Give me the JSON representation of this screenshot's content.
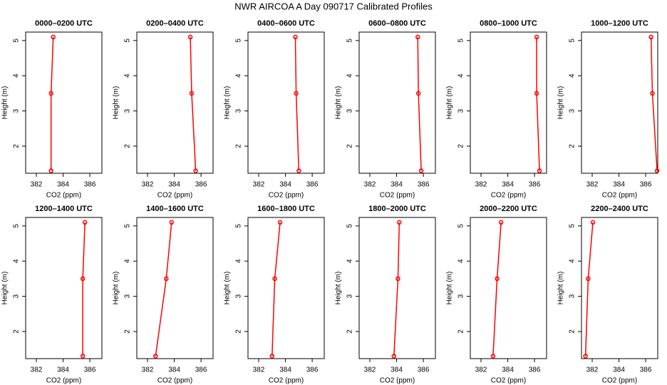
{
  "title": "NWR AIRCOA A  Day 090717  Calibrated Profiles",
  "chart_data": [
    {
      "type": "line",
      "title": "0000–0200 UTC",
      "x_label": "CO2 (ppm)",
      "y_label": "Height (m)",
      "x": [
        383.1,
        383.1,
        383.26
      ],
      "values": [
        1.3,
        3.5,
        5.1
      ],
      "color": "#ff0000",
      "xlim": [
        381.2,
        386.9
      ],
      "ylim": [
        1.23,
        5.24
      ],
      "xticks": [
        382,
        384,
        386
      ],
      "yticks": [
        2,
        3,
        4,
        5
      ]
    },
    {
      "type": "line",
      "title": "0200–0400 UTC",
      "x_label": "CO2 (ppm)",
      "y_label": "Height (m)",
      "x": [
        385.6,
        385.3,
        385.2
      ],
      "values": [
        1.3,
        3.5,
        5.1
      ],
      "color": "#ff0000",
      "xlim": [
        381.2,
        386.9
      ],
      "ylim": [
        1.23,
        5.24
      ],
      "xticks": [
        382,
        384,
        386
      ],
      "yticks": [
        2,
        3,
        4,
        5
      ]
    },
    {
      "type": "line",
      "title": "0400–0600 UTC",
      "x_label": "CO2 (ppm)",
      "y_label": "Height (m)",
      "x": [
        385.0,
        384.8,
        384.74
      ],
      "values": [
        1.3,
        3.5,
        5.1
      ],
      "color": "#ff0000",
      "xlim": [
        381.2,
        386.9
      ],
      "ylim": [
        1.23,
        5.24
      ],
      "xticks": [
        382,
        384,
        386
      ],
      "yticks": [
        2,
        3,
        4,
        5
      ]
    },
    {
      "type": "line",
      "title": "0600–0800 UTC",
      "x_label": "CO2 (ppm)",
      "y_label": "Height (m)",
      "x": [
        385.84,
        385.63,
        385.58
      ],
      "values": [
        1.3,
        3.5,
        5.1
      ],
      "color": "#ff0000",
      "xlim": [
        381.2,
        386.9
      ],
      "ylim": [
        1.23,
        5.24
      ],
      "xticks": [
        382,
        384,
        386
      ],
      "yticks": [
        2,
        3,
        4,
        5
      ]
    },
    {
      "type": "line",
      "title": "0800–1000 UTC",
      "x_label": "CO2 (ppm)",
      "y_label": "Height (m)",
      "x": [
        386.37,
        386.16,
        386.16
      ],
      "values": [
        1.3,
        3.5,
        5.1
      ],
      "color": "#ff0000",
      "xlim": [
        381.2,
        386.9
      ],
      "ylim": [
        1.23,
        5.24
      ],
      "xticks": [
        382,
        384,
        386
      ],
      "yticks": [
        2,
        3,
        4,
        5
      ]
    },
    {
      "type": "line",
      "title": "1000–1200 UTC",
      "x_label": "CO2 (ppm)",
      "y_label": "Height (m)",
      "x": [
        386.85,
        386.5,
        386.4
      ],
      "values": [
        1.3,
        3.5,
        5.1
      ],
      "color": "#ff0000",
      "xlim": [
        381.2,
        386.9
      ],
      "ylim": [
        1.23,
        5.24
      ],
      "xticks": [
        382,
        384,
        386
      ],
      "yticks": [
        2,
        3,
        4,
        5
      ]
    },
    {
      "type": "line",
      "title": "1200–1400 UTC",
      "x_label": "CO2 (ppm)",
      "y_label": "Height (m)",
      "x": [
        385.47,
        385.47,
        385.63
      ],
      "values": [
        1.3,
        3.5,
        5.1
      ],
      "color": "#ff0000",
      "xlim": [
        381.2,
        386.9
      ],
      "ylim": [
        1.23,
        5.24
      ],
      "xticks": [
        382,
        384,
        386
      ],
      "yticks": [
        2,
        3,
        4,
        5
      ]
    },
    {
      "type": "line",
      "title": "1400–1600 UTC",
      "x_label": "CO2 (ppm)",
      "y_label": "Height (m)",
      "x": [
        382.6,
        383.4,
        383.8
      ],
      "values": [
        1.3,
        3.5,
        5.1
      ],
      "color": "#ff0000",
      "xlim": [
        381.2,
        386.9
      ],
      "ylim": [
        1.23,
        5.24
      ],
      "xticks": [
        382,
        384,
        386
      ],
      "yticks": [
        2,
        3,
        4,
        5
      ]
    },
    {
      "type": "line",
      "title": "1600–1800 UTC",
      "x_label": "CO2 (ppm)",
      "y_label": "Height (m)",
      "x": [
        383.0,
        383.2,
        383.6
      ],
      "values": [
        1.3,
        3.5,
        5.1
      ],
      "color": "#ff0000",
      "xlim": [
        381.2,
        386.9
      ],
      "ylim": [
        1.23,
        5.24
      ],
      "xticks": [
        382,
        384,
        386
      ],
      "yticks": [
        2,
        3,
        4,
        5
      ]
    },
    {
      "type": "line",
      "title": "1800–2000 UTC",
      "x_label": "CO2 (ppm)",
      "y_label": "Height (m)",
      "x": [
        383.8,
        384.1,
        384.2
      ],
      "values": [
        1.3,
        3.5,
        5.1
      ],
      "color": "#ff0000",
      "xlim": [
        381.2,
        386.9
      ],
      "ylim": [
        1.23,
        5.24
      ],
      "xticks": [
        382,
        384,
        386
      ],
      "yticks": [
        2,
        3,
        4,
        5
      ]
    },
    {
      "type": "line",
      "title": "2000–2200 UTC",
      "x_label": "CO2 (ppm)",
      "y_label": "Height (m)",
      "x": [
        382.9,
        383.2,
        383.5
      ],
      "values": [
        1.3,
        3.5,
        5.1
      ],
      "color": "#ff0000",
      "xlim": [
        381.2,
        386.9
      ],
      "ylim": [
        1.23,
        5.24
      ],
      "xticks": [
        382,
        384,
        386
      ],
      "yticks": [
        2,
        3,
        4,
        5
      ]
    },
    {
      "type": "line",
      "title": "2200–2400 UTC",
      "x_label": "CO2 (ppm)",
      "y_label": "Height (m)",
      "x": [
        381.5,
        381.7,
        382.05
      ],
      "values": [
        1.3,
        3.5,
        5.1
      ],
      "color": "#ff0000",
      "xlim": [
        381.2,
        386.9
      ],
      "ylim": [
        1.23,
        5.24
      ],
      "xticks": [
        382,
        384,
        386
      ],
      "yticks": [
        2,
        3,
        4,
        5
      ]
    }
  ]
}
